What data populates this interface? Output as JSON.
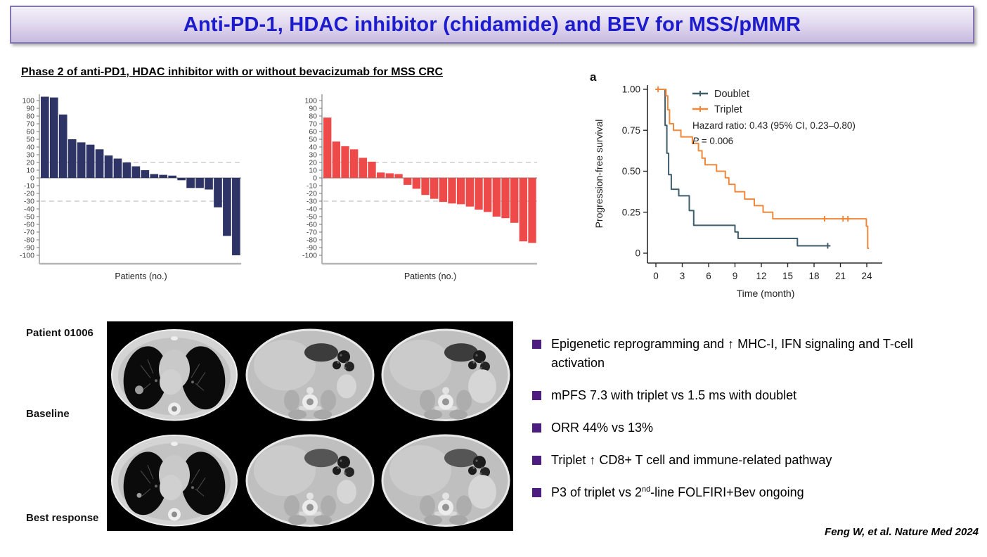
{
  "slide": {
    "title": "Anti-PD-1, HDAC inhibitor (chidamide) and BEV for MSS/pMMR",
    "subtitle": "Phase 2 of anti-PD1, HDAC inhibitor with or without bevacizumab for MSS CRC",
    "citation": "Feng W, et al. Nature Med 2024"
  },
  "colors": {
    "banner_text": "#1c1ccd",
    "banner_border": "#8476b0",
    "bullet": "#4c1d7e",
    "navy_bar": "#2e3466",
    "red_bar": "#ef4a4a",
    "doublet_line": "#3f5d6b",
    "triplet_line": "#f0883c",
    "ref_dash": "#cdcdcd"
  },
  "ct_panel": {
    "patient_label": "Patient 01006",
    "row_labels": [
      "Baseline",
      "Best response"
    ]
  },
  "bullets": [
    {
      "text": "Epigenetic reprogramming and ↑ MHC-I, IFN signaling and T-cell activation"
    },
    {
      "text": "mPFS 7.3 with triplet vs 1.5 ms with doublet"
    },
    {
      "text": "ORR 44% vs 13%"
    },
    {
      "text": "Triplet ↑ CD8+ T cell and immune-related pathway"
    },
    {
      "pre": "P3 of triplet vs 2",
      "sup": "nd",
      "post": "-line FOLFIRI+Bev ongoing"
    }
  ],
  "chart_data": [
    {
      "id": "waterfall_doublet",
      "type": "bar",
      "xlabel": "Patients (no.)",
      "ylabel": "",
      "ylim": [
        -100,
        110
      ],
      "ytick_step": 10,
      "ref_lines": [
        20,
        -30
      ],
      "color": "#2e3466",
      "values": [
        105,
        104,
        82,
        50,
        46,
        43,
        37,
        29,
        25,
        20,
        15,
        10,
        5,
        4,
        3,
        -3,
        -13,
        -13,
        -15,
        -38,
        -75,
        -100
      ]
    },
    {
      "id": "waterfall_triplet",
      "type": "bar",
      "xlabel": "Patients (no.)",
      "ylabel": "",
      "ylim": [
        -100,
        110
      ],
      "ytick_step": 10,
      "ref_lines": [
        20,
        -30
      ],
      "color": "#ef4a4a",
      "values": [
        78,
        47,
        41,
        37,
        26,
        21,
        7,
        6,
        5,
        -9,
        -14,
        -22,
        -27,
        -31,
        -33,
        -34,
        -37,
        -41,
        -44,
        -50,
        -52,
        -58,
        -82,
        -84
      ]
    },
    {
      "id": "km_pfs",
      "type": "line",
      "panel_label": "a",
      "xlabel": "Time (month)",
      "ylabel": "Progression-free survival",
      "xticks": [
        0,
        3,
        6,
        9,
        12,
        15,
        18,
        21,
        24
      ],
      "yticks": [
        "0",
        "0.25",
        "0.50",
        "0.75",
        "1.00"
      ],
      "xlim": [
        0,
        25
      ],
      "ylim": [
        0,
        1
      ],
      "grid": false,
      "legend_position": "top-center-inside",
      "annotations": [
        "Hazard ratio: 0.43 (95% CI, 0.23–0.80)",
        "P = 0.006"
      ],
      "series": [
        {
          "name": "Doublet",
          "color": "#3f5d6b",
          "steps": [
            [
              0,
              1
            ],
            [
              1.05,
              1
            ],
            [
              1.05,
              0.78
            ],
            [
              1.25,
              0.78
            ],
            [
              1.25,
              0.61
            ],
            [
              1.45,
              0.61
            ],
            [
              1.45,
              0.48
            ],
            [
              1.75,
              0.48
            ],
            [
              1.75,
              0.39
            ],
            [
              2.6,
              0.39
            ],
            [
              2.6,
              0.35
            ],
            [
              3.8,
              0.35
            ],
            [
              3.8,
              0.26
            ],
            [
              4.3,
              0.26
            ],
            [
              4.3,
              0.17
            ],
            [
              9,
              0.17
            ],
            [
              9,
              0.13
            ],
            [
              9.35,
              0.13
            ],
            [
              9.35,
              0.09
            ],
            [
              16.1,
              0.09
            ],
            [
              16.1,
              0.045
            ],
            [
              19.8,
              0.045
            ]
          ],
          "censors": [
            [
              19.55,
              0.045
            ]
          ]
        },
        {
          "name": "Triplet",
          "color": "#f0883c",
          "steps": [
            [
              0,
              1
            ],
            [
              1.15,
              1
            ],
            [
              1.15,
              0.96
            ],
            [
              1.35,
              0.96
            ],
            [
              1.35,
              0.875
            ],
            [
              1.55,
              0.875
            ],
            [
              1.55,
              0.79
            ],
            [
              2,
              0.79
            ],
            [
              2,
              0.75
            ],
            [
              2.85,
              0.75
            ],
            [
              2.85,
              0.71
            ],
            [
              4.15,
              0.71
            ],
            [
              4.15,
              0.67
            ],
            [
              4.85,
              0.67
            ],
            [
              4.85,
              0.625
            ],
            [
              5.25,
              0.625
            ],
            [
              5.25,
              0.58
            ],
            [
              5.6,
              0.58
            ],
            [
              5.6,
              0.54
            ],
            [
              6.9,
              0.54
            ],
            [
              6.9,
              0.5
            ],
            [
              7.9,
              0.5
            ],
            [
              7.9,
              0.46
            ],
            [
              8.3,
              0.46
            ],
            [
              8.3,
              0.42
            ],
            [
              9,
              0.42
            ],
            [
              9,
              0.375
            ],
            [
              10.1,
              0.375
            ],
            [
              10.1,
              0.33
            ],
            [
              11.2,
              0.33
            ],
            [
              11.2,
              0.29
            ],
            [
              12.2,
              0.29
            ],
            [
              12.2,
              0.25
            ],
            [
              13.3,
              0.25
            ],
            [
              13.3,
              0.21
            ],
            [
              23.95,
              0.21
            ],
            [
              23.95,
              0.165
            ],
            [
              24.1,
              0.165
            ],
            [
              24.1,
              0.03
            ],
            [
              24.25,
              0.03
            ]
          ],
          "censors": [
            [
              0.25,
              1
            ],
            [
              19.2,
              0.21
            ],
            [
              21.3,
              0.21
            ],
            [
              21.85,
              0.21
            ]
          ]
        }
      ]
    }
  ]
}
